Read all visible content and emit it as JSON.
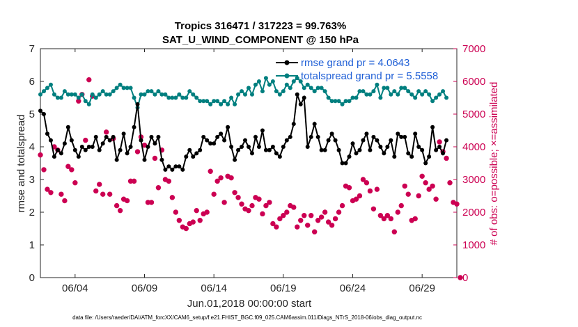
{
  "chart_data": {
    "type": "line",
    "title_line1": "Tropics 316471 / 317223 = 99.763%",
    "title_line2": "SAT_U_WIND_COMPONENT @ 150 hPa",
    "xlabel": "Jun.01,2018 00:00:00 start",
    "ylabel_left": "rmse and totalspread",
    "ylabel_right": "# of obs: o=possible; ×=assimilated",
    "x_tick_labels": [
      "06/04",
      "06/09",
      "06/14",
      "06/19",
      "06/24",
      "06/29"
    ],
    "x_tick_days": [
      4,
      9,
      14,
      19,
      24,
      29
    ],
    "xlim": [
      1.5,
      31.5
    ],
    "ylim_left": [
      0,
      7
    ],
    "ylim_right": [
      0,
      7000
    ],
    "y_ticks_left": [
      "0",
      "1",
      "2",
      "3",
      "4",
      "5",
      "6",
      "7"
    ],
    "y_ticks_right": [
      "0",
      "1000",
      "2000",
      "3000",
      "4000",
      "5000",
      "6000",
      "7000"
    ],
    "legend": [
      {
        "label": "rmse grand pr = 4.0643",
        "color": "#000000"
      },
      {
        "label": "totalspread grand pr = 5.5558",
        "color": "#007f7f"
      }
    ],
    "series": [
      {
        "name": "rmse",
        "color": "#000000",
        "axis": "left",
        "values": [
          5.1,
          5.0,
          4.4,
          4.2,
          3.7,
          3.9,
          3.8,
          4.1,
          4.6,
          4.2,
          3.9,
          3.7,
          4.0,
          3.9,
          4.0,
          4.0,
          4.3,
          3.9,
          4.1,
          4.3,
          4.2,
          4.3,
          3.6,
          3.9,
          4.4,
          3.8,
          4.0,
          4.6,
          5.3,
          4.2,
          3.6,
          4.0,
          4.3,
          4.1,
          4.3,
          3.6,
          3.3,
          3.4,
          3.3,
          3.4,
          3.4,
          3.3,
          3.7,
          3.9,
          3.7,
          3.8,
          3.9,
          4.3,
          4.2,
          4.1,
          4.1,
          4.3,
          4.4,
          4.2,
          4.6,
          4.0,
          3.6,
          3.9,
          4.0,
          4.2,
          4.0,
          3.8,
          4.3,
          4.0,
          4.5,
          3.9,
          3.9,
          4.0,
          3.8,
          3.7,
          4.0,
          4.2,
          4.3,
          4.7,
          5.6,
          5.3,
          5.5,
          4.0,
          4.3,
          4.7,
          4.3,
          3.9,
          3.9,
          4.2,
          4.4,
          4.2,
          3.9,
          3.5,
          3.5,
          3.7,
          4.1,
          3.8,
          3.9,
          4.2,
          4.4,
          3.9,
          4.3,
          4.2,
          4.0,
          3.8,
          4.0,
          4.2,
          3.7,
          4.4,
          4.3,
          4.3,
          3.8,
          3.7,
          4.4,
          4.0,
          3.9,
          3.5,
          3.7,
          4.6,
          3.9,
          4.0,
          3.8,
          4.2
        ]
      },
      {
        "name": "totalspread",
        "color": "#007f7f",
        "axis": "left",
        "values": [
          5.6,
          5.7,
          5.8,
          5.9,
          5.6,
          5.5,
          5.5,
          5.7,
          5.6,
          5.6,
          5.6,
          5.5,
          5.6,
          5.4,
          5.3,
          5.6,
          5.5,
          5.6,
          5.7,
          5.6,
          5.6,
          5.7,
          5.8,
          5.9,
          5.8,
          5.8,
          5.8,
          5.5,
          5.2,
          5.6,
          5.6,
          5.7,
          5.7,
          5.6,
          5.7,
          5.6,
          5.6,
          5.5,
          5.5,
          5.5,
          5.6,
          5.5,
          5.5,
          5.7,
          5.6,
          5.5,
          5.4,
          5.4,
          5.4,
          5.3,
          5.4,
          5.4,
          5.3,
          5.4,
          5.3,
          5.5,
          5.3,
          5.6,
          5.7,
          5.6,
          5.8,
          5.6,
          5.9,
          6.0,
          5.7,
          6.1,
          5.9,
          6.0,
          5.7,
          5.6,
          5.7,
          5.9,
          5.8,
          6.0,
          6.1,
          6.0,
          5.8,
          5.9,
          5.8,
          5.7,
          5.8,
          5.8,
          5.7,
          5.5,
          5.4,
          5.4,
          5.4,
          5.3,
          5.4,
          5.4,
          5.5,
          5.5,
          5.7,
          5.7,
          5.6,
          5.6,
          5.7,
          5.9,
          5.5,
          5.8,
          5.8,
          5.6,
          5.7,
          5.6,
          5.8,
          5.8,
          5.7,
          5.6,
          5.5,
          5.7,
          5.6,
          5.7,
          5.6,
          5.4,
          5.5,
          5.6,
          5.7,
          5.5
        ]
      },
      {
        "name": "obs possible",
        "color": "#cc0052",
        "axis": "right",
        "marker": "o",
        "values": [
          3750,
          3300,
          2700,
          2600,
          4000,
          3900,
          2550,
          2350,
          3400,
          3300,
          2900,
          5400,
          5600,
          4200,
          6050,
          5550,
          2650,
          2850,
          2550,
          4450,
          2550,
          4250,
          2200,
          2050,
          2400,
          2350,
          2950,
          2950,
          3850,
          4300,
          4050,
          2300,
          2300,
          3650,
          2750,
          3900,
          3000,
          2950,
          2450,
          2000,
          1750,
          1550,
          1500,
          1650,
          1700,
          2050,
          1750,
          1950,
          2000,
          3250,
          2550,
          2950,
          3050,
          2300,
          3100,
          3050,
          2600,
          2450,
          2250,
          2100,
          2050,
          2200,
          2450,
          2400,
          1950,
          2200,
          2300,
          1650,
          1550,
          1800,
          1900,
          2000,
          2200,
          2150,
          1550,
          1750,
          1900,
          1600,
          1900,
          1400,
          1750,
          1850,
          2000,
          1700,
          1600,
          1800,
          2000,
          2200,
          2800,
          2750,
          2350,
          2400,
          2500,
          3000,
          2900,
          2650,
          2100,
          2700,
          1900,
          1800,
          1900,
          1800,
          1400,
          2000,
          2200,
          2800,
          2550,
          1750,
          1800,
          2500,
          3100,
          2900,
          2700,
          2800,
          2400,
          4150,
          3850,
          3650,
          2900,
          2300,
          2250,
          0
        ]
      }
    ]
  },
  "footer": "data file: /Users/raeder/DAI/ATM_forcXX/CAM6_setup/f.e21.FHIST_BGC.f09_025.CAM6assim.011/Diags_NTrS_2018-06/obs_diag_output.nc"
}
